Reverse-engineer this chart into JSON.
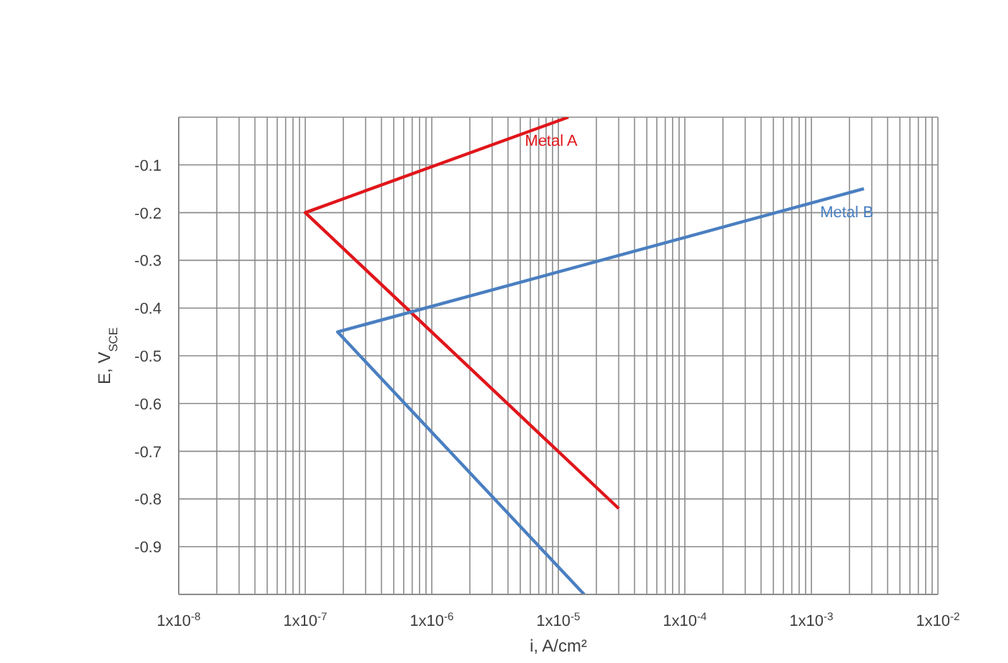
{
  "chart_data": {
    "type": "line",
    "xlabel": "i, A/cm²",
    "ylabel": "E, V$_{SCE}$",
    "log": "x",
    "grid": true,
    "marker": "none",
    "line_style": "solid",
    "xlim": [
      1e-08,
      0.01
    ],
    "ylim": [
      -1.0,
      0.0
    ],
    "xticks": [
      {
        "value": 1e-08,
        "label": "1x10$^{-8}$"
      },
      {
        "value": 2e-08,
        "label": null
      },
      {
        "value": 3e-08,
        "label": null
      },
      {
        "value": 4e-08,
        "label": null
      },
      {
        "value": 5e-08,
        "label": null
      },
      {
        "value": 6e-08,
        "label": null
      },
      {
        "value": 7e-08,
        "label": null
      },
      {
        "value": 8e-08,
        "label": null
      },
      {
        "value": 9e-08,
        "label": null
      },
      {
        "value": 1e-07,
        "label": "1x10$^{-7}$"
      },
      {
        "value": 2e-07,
        "label": null
      },
      {
        "value": 3e-07,
        "label": null
      },
      {
        "value": 4e-07,
        "label": null
      },
      {
        "value": 5e-07,
        "label": null
      },
      {
        "value": 6e-07,
        "label": null
      },
      {
        "value": 7e-07,
        "label": null
      },
      {
        "value": 8e-07,
        "label": null
      },
      {
        "value": 9e-07,
        "label": null
      },
      {
        "value": 1e-06,
        "label": "1x10$^{-6}$"
      },
      {
        "value": 2e-06,
        "label": null
      },
      {
        "value": 3e-06,
        "label": null
      },
      {
        "value": 4e-06,
        "label": null
      },
      {
        "value": 5e-06,
        "label": null
      },
      {
        "value": 6e-06,
        "label": null
      },
      {
        "value": 7e-06,
        "label": null
      },
      {
        "value": 8e-06,
        "label": null
      },
      {
        "value": 9e-06,
        "label": null
      },
      {
        "value": 1e-05,
        "label": "1x10$^{-5}$"
      },
      {
        "value": 2e-05,
        "label": null
      },
      {
        "value": 3e-05,
        "label": null
      },
      {
        "value": 4e-05,
        "label": null
      },
      {
        "value": 5e-05,
        "label": null
      },
      {
        "value": 6e-05,
        "label": null
      },
      {
        "value": 7e-05,
        "label": null
      },
      {
        "value": 8e-05,
        "label": null
      },
      {
        "value": 9e-05,
        "label": null
      },
      {
        "value": 0.0001,
        "label": "1x10$^{-4}$"
      },
      {
        "value": 0.0002,
        "label": null
      },
      {
        "value": 0.0003,
        "label": null
      },
      {
        "value": 0.0004,
        "label": null
      },
      {
        "value": 0.0005,
        "label": null
      },
      {
        "value": 0.0006,
        "label": null
      },
      {
        "value": 0.0007,
        "label": null
      },
      {
        "value": 0.0008,
        "label": null
      },
      {
        "value": 0.0009,
        "label": null
      },
      {
        "value": 0.001,
        "label": "1x10$^{-3}$"
      },
      {
        "value": 0.002,
        "label": null
      },
      {
        "value": 0.003,
        "label": null
      },
      {
        "value": 0.004,
        "label": null
      },
      {
        "value": 0.005,
        "label": null
      },
      {
        "value": 0.006,
        "label": null
      },
      {
        "value": 0.007,
        "label": null
      },
      {
        "value": 0.008,
        "label": null
      },
      {
        "value": 0.009,
        "label": null
      },
      {
        "value": 0.01,
        "label": "1x10$^{-2}$"
      }
    ],
    "yticks": [
      {
        "value": 0.0,
        "label": null
      },
      -0.1,
      -0.2,
      -0.3,
      -0.4,
      -0.5,
      -0.6,
      -0.7,
      -0.8,
      -0.9,
      {
        "value": -1.0,
        "label": null
      }
    ],
    "series": [
      {
        "name": "Metal A",
        "color": "#e0161b",
        "x": [
          1.2e-05,
          1e-07,
          3e-05
        ],
        "values": [
          0.0,
          -0.2,
          -0.82
        ]
      },
      {
        "name": "Metal B",
        "color": "#4a7fc1",
        "x": [
          0.0026,
          1.8e-07,
          1.6e-05
        ],
        "values": [
          -0.15,
          -0.45,
          -1.0
        ]
      }
    ]
  }
}
